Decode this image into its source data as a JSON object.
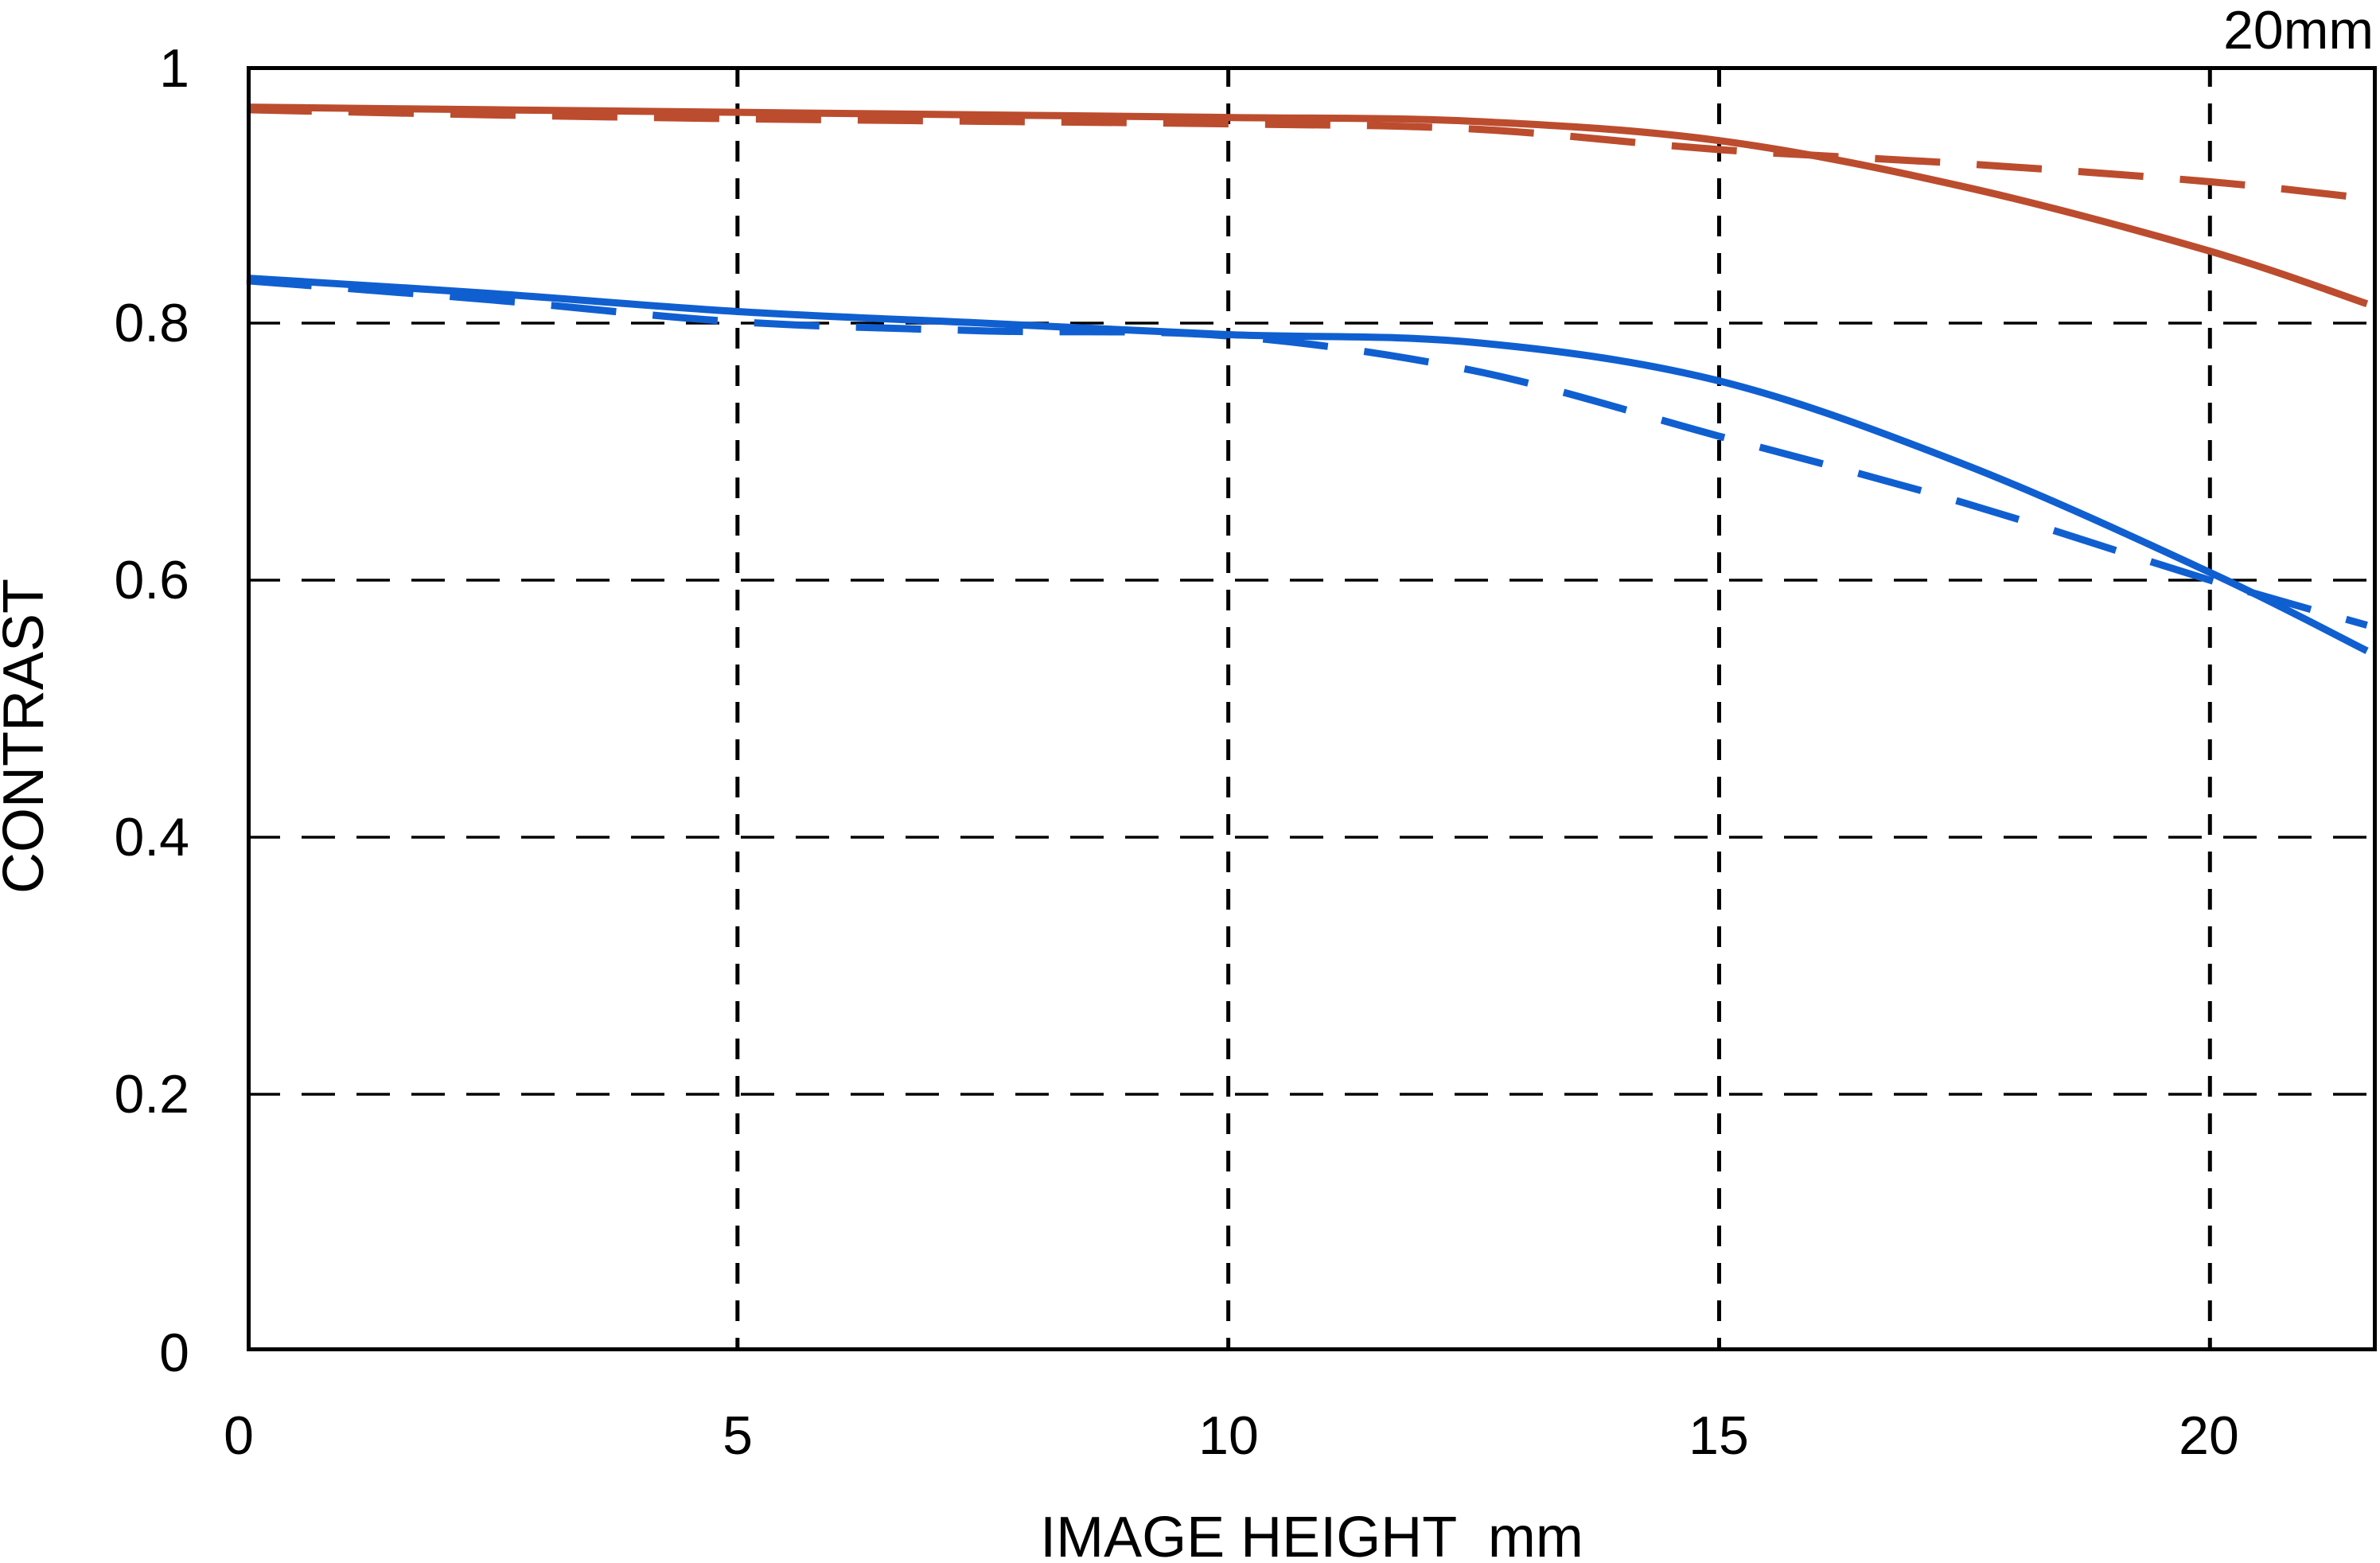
{
  "annotation": {
    "focal_length_label": "20mm"
  },
  "y_axis": {
    "label": "CONTRAST",
    "ticks": [
      "1",
      "0.8",
      "0.6",
      "0.4",
      "0.2",
      "0"
    ]
  },
  "x_axis": {
    "label": "IMAGE HEIGHT  mm",
    "ticks": [
      "0",
      "5",
      "10",
      "15",
      "20"
    ]
  },
  "colors": {
    "red_curve": "#bc4c2e",
    "blue_curve": "#105fd0",
    "grid": "#000000",
    "background": "#ffffff"
  },
  "chart_data": {
    "type": "line",
    "title": "20mm",
    "xlabel": "IMAGE HEIGHT mm",
    "ylabel": "CONTRAST",
    "xlim": [
      0,
      21.7
    ],
    "ylim": [
      0,
      1
    ],
    "x_gridlines": [
      5,
      10,
      15,
      20
    ],
    "y_gridlines": [
      0.2,
      0.4,
      0.6,
      0.8
    ],
    "grid_style": "dashed",
    "legend": "none visible",
    "x": [
      0,
      2.5,
      5,
      7.5,
      10,
      12.5,
      15,
      17.5,
      20,
      21.6
    ],
    "series": [
      {
        "name": "red-solid",
        "color": "#bc4c2e",
        "style": "solid",
        "values": [
          0.968,
          0.966,
          0.964,
          0.962,
          0.96,
          0.957,
          0.942,
          0.906,
          0.856,
          0.815
        ]
      },
      {
        "name": "red-dashed",
        "color": "#bc4c2e",
        "style": "dashed",
        "values": [
          0.966,
          0.962,
          0.959,
          0.957,
          0.955,
          0.951,
          0.935,
          0.924,
          0.91,
          0.897
        ]
      },
      {
        "name": "blue-solid",
        "color": "#105fd0",
        "style": "solid",
        "values": [
          0.835,
          0.823,
          0.809,
          0.8,
          0.791,
          0.785,
          0.755,
          0.69,
          0.606,
          0.545
        ]
      },
      {
        "name": "blue-dashed",
        "color": "#105fd0",
        "style": "dashed",
        "values": [
          0.833,
          0.818,
          0.801,
          0.794,
          0.79,
          0.763,
          0.712,
          0.66,
          0.6,
          0.565
        ]
      }
    ]
  }
}
